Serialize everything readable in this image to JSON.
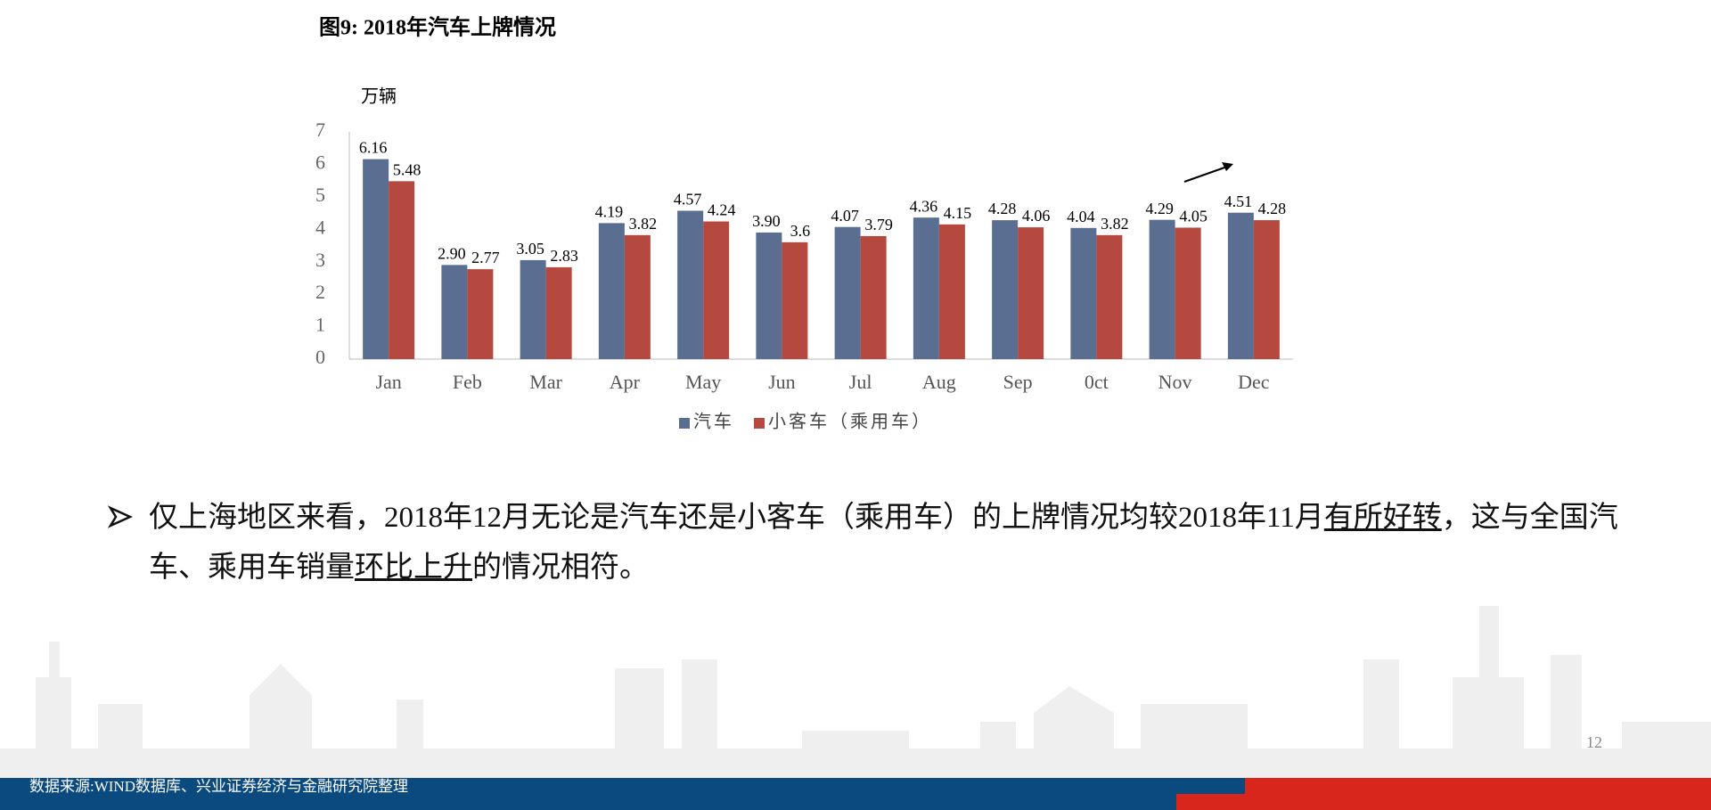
{
  "chart_data": {
    "type": "bar",
    "title": "图9:  2018年汽车上牌情况",
    "y_label": "万辆",
    "categories": [
      "Jan",
      "Feb",
      "Mar",
      "Apr",
      "May",
      "Jun",
      "Jul",
      "Aug",
      "Sep",
      "0ct",
      "Nov",
      "Dec"
    ],
    "series": [
      {
        "name": "汽车",
        "color": "#5a6e92",
        "values": [
          6.16,
          2.9,
          3.05,
          4.19,
          4.57,
          3.9,
          4.07,
          4.36,
          4.28,
          4.04,
          4.29,
          4.51
        ],
        "value_labels": [
          "6.16",
          "2.90",
          "3.05",
          "4.19",
          "4.57",
          "3.90",
          "4.07",
          "4.36",
          "4.28",
          "4.04",
          "4.29",
          "4.51"
        ]
      },
      {
        "name": "小客车（乘用车）",
        "color": "#b5483f",
        "values": [
          5.48,
          2.77,
          2.83,
          3.82,
          4.24,
          3.6,
          3.79,
          4.15,
          4.06,
          3.82,
          4.05,
          4.28
        ]
      }
    ],
    "ylim": [
      0,
      7
    ],
    "yticks": [
      0,
      1,
      2,
      3,
      4,
      5,
      6,
      7
    ],
    "grid": false,
    "legend": "bottom"
  },
  "body": {
    "paragraph": [
      "仅上海地区来看，2018年12月无论是汽车还是小客车（乘用车）的上牌情况均较2018年11月",
      "有所好转",
      "，这与全国汽车、乘用车销量",
      "环比上升",
      "的情况相符。"
    ]
  },
  "footer": {
    "source": "数据来源:WIND数据库、兴业证券经济与金融研究院整理",
    "page": "12"
  }
}
